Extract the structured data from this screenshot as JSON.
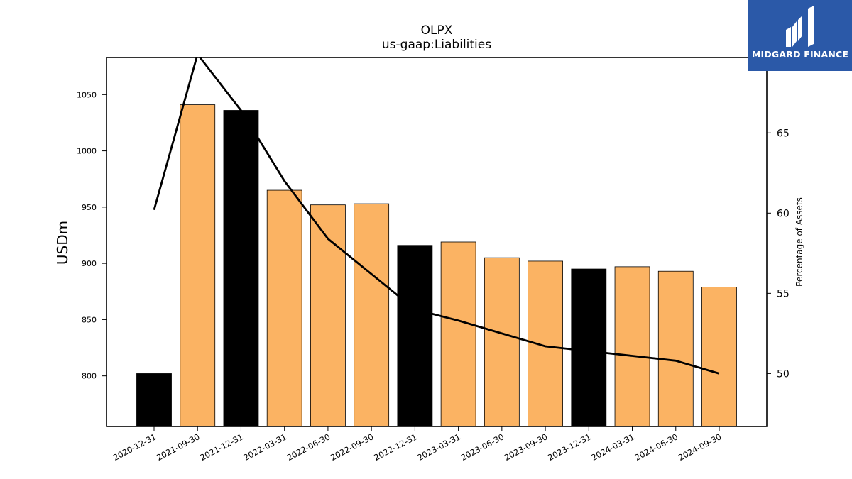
{
  "chart_data": {
    "type": "bar",
    "title": "OLPX",
    "subtitle": "us-gaap:Liabilities",
    "ylabel": "USDm",
    "y2label": "Percentage of Assets",
    "categories": [
      "2020-12-31",
      "2021-09-30",
      "2021-12-31",
      "2022-03-31",
      "2022-06-30",
      "2022-09-30",
      "2022-12-31",
      "2023-03-31",
      "2023-06-30",
      "2023-09-30",
      "2023-12-31",
      "2024-03-31",
      "2024-06-30",
      "2024-09-30"
    ],
    "series": [
      {
        "type": "bar",
        "values": [
          802,
          1041,
          1036,
          965,
          952,
          953,
          916,
          919,
          905,
          902,
          895,
          897,
          893,
          879
        ],
        "colors": [
          "#000000",
          "#fbb363",
          "#000000",
          "#fbb363",
          "#fbb363",
          "#fbb363",
          "#000000",
          "#fbb363",
          "#fbb363",
          "#fbb363",
          "#000000",
          "#fbb363",
          "#fbb363",
          "#fbb363"
        ]
      },
      {
        "type": "line",
        "axis": "right",
        "values": [
          60.2,
          69.9,
          66.4,
          62.0,
          58.4,
          56.2,
          54.0,
          53.3,
          52.5,
          51.7,
          51.4,
          51.1,
          50.8,
          50.0
        ]
      }
    ],
    "ylim": [
      755,
      1083
    ],
    "yticks": [
      800,
      850,
      900,
      950,
      1000,
      1050
    ],
    "y2lim": [
      46.7,
      69.7
    ],
    "y2ticks": [
      50,
      55,
      60,
      65
    ],
    "colors": {
      "highlight": "#000000",
      "bar": "#fbb363",
      "line": "#000000"
    }
  },
  "logo": {
    "text": "MIDGARD FINANCE",
    "background": "#2b59a8"
  }
}
